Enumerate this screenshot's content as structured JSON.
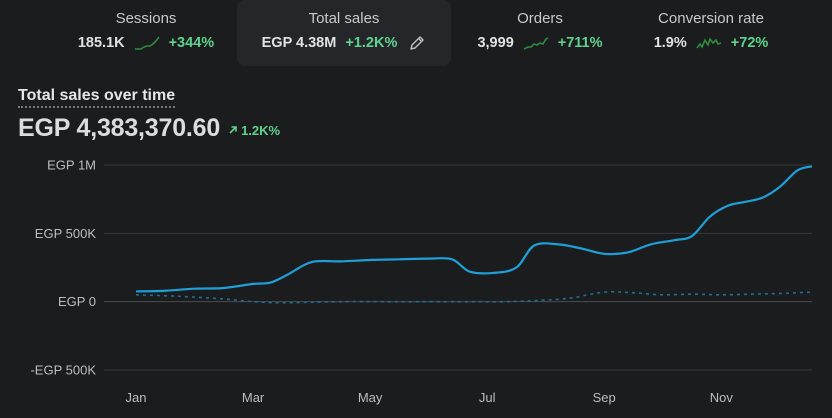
{
  "metrics": [
    {
      "label": "Sessions",
      "value": "185.1K",
      "change": "+344%",
      "spark_icon": "sparkline-icon"
    },
    {
      "label": "Total sales",
      "value": "EGP 4.38M",
      "change": "+1.2K%",
      "edit_icon": "pencil-icon"
    },
    {
      "label": "Orders",
      "value": "3,999",
      "change": "+711%",
      "spark_icon": "sparkline-icon"
    },
    {
      "label": "Conversion rate",
      "value": "1.9%",
      "change": "+72%",
      "spark_icon": "sparkline-icon"
    }
  ],
  "colors": {
    "background": "#1b1c1e",
    "positive": "#5fd38d",
    "series": "#1f9fd8"
  },
  "chart_title": "Total sales over time",
  "chart_total": "EGP 4,383,370.60",
  "chart_change": "1.2K%",
  "chart_data": {
    "type": "line",
    "title": "Total sales over time",
    "ylim": [
      -500000,
      1000000
    ],
    "y_ticks": [
      "EGP 1M",
      "EGP 500K",
      "EGP 0",
      "-EGP 500K"
    ],
    "y_tick_values": [
      1000000,
      500000,
      0,
      -500000
    ],
    "x_ticks": [
      "Jan",
      "Mar",
      "May",
      "Jul",
      "Sep",
      "Nov"
    ],
    "x_tick_values": [
      0,
      2,
      4,
      6,
      8,
      10
    ],
    "xlim": [
      0,
      11.55
    ],
    "grid": true,
    "series": [
      {
        "style": "solid",
        "x": [
          0,
          0.5,
          1,
          1.5,
          2,
          2.3,
          2.6,
          3,
          3.5,
          4,
          4.5,
          5,
          5.4,
          5.7,
          6.1,
          6.5,
          6.8,
          7.2,
          7.6,
          8,
          8.4,
          8.8,
          9.2,
          9.5,
          9.8,
          10.1,
          10.4,
          10.7,
          11,
          11.3,
          11.55
        ],
        "y": [
          75000,
          80000,
          95000,
          100000,
          130000,
          140000,
          200000,
          290000,
          295000,
          305000,
          310000,
          315000,
          310000,
          220000,
          210000,
          250000,
          410000,
          420000,
          390000,
          350000,
          360000,
          420000,
          450000,
          480000,
          620000,
          700000,
          730000,
          760000,
          840000,
          960000,
          990000
        ]
      },
      {
        "style": "dashed",
        "x": [
          0,
          0.7,
          1.5,
          2,
          2.5,
          3.5,
          4.5,
          5.5,
          6.3,
          6.8,
          7.4,
          8,
          8.5,
          9,
          9.5,
          10,
          10.5,
          11,
          11.55
        ],
        "y": [
          50000,
          40000,
          20000,
          0,
          -8000,
          0,
          0,
          0,
          0,
          8000,
          25000,
          70000,
          65000,
          50000,
          55000,
          50000,
          55000,
          60000,
          70000
        ]
      }
    ]
  }
}
